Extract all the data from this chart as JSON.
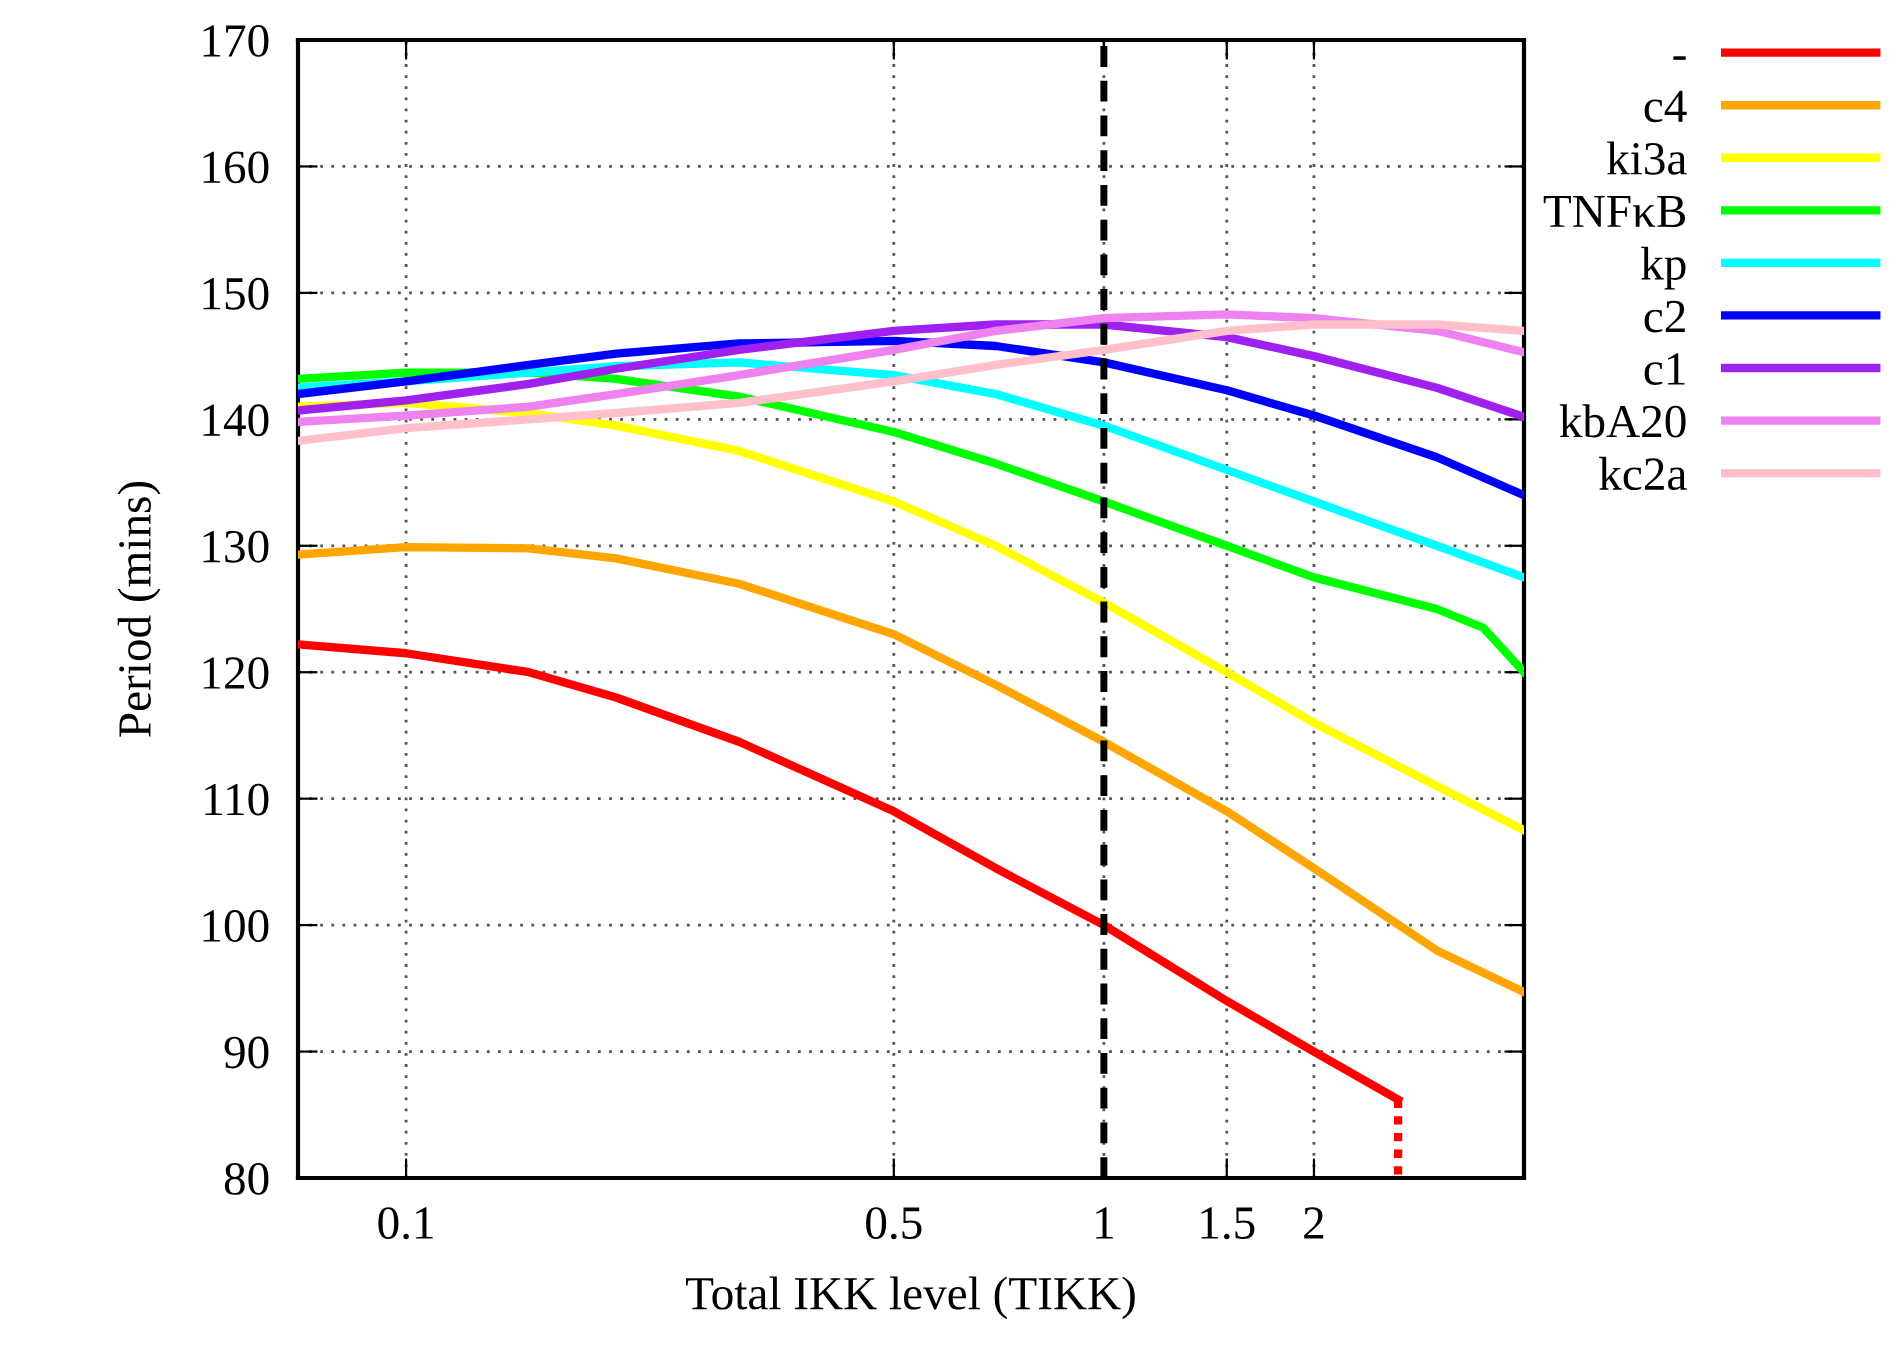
{
  "chart_data": {
    "type": "line",
    "xlabel": "Total IKK level (TIKK)",
    "ylabel": "Period (mins)",
    "log": "x",
    "xlim": [
      0.07,
      4.0
    ],
    "ylim": [
      80,
      170
    ],
    "xticks": [
      0.1,
      0.5,
      1,
      1.5,
      2
    ],
    "yticks": [
      80,
      90,
      100,
      110,
      120,
      130,
      140,
      150,
      160,
      170
    ],
    "grid": true,
    "legend": "top right",
    "line_style": "solid",
    "marker": "none",
    "x": [
      0.07,
      0.1,
      0.15,
      0.2,
      0.3,
      0.5,
      0.7,
      1,
      1.5,
      2,
      3,
      4
    ],
    "series": [
      {
        "name": "-",
        "color": "#ff0000",
        "x": [
          0.07,
          0.1,
          0.15,
          0.2,
          0.3,
          0.5,
          0.7,
          1,
          1.5,
          2,
          2.64
        ],
        "values": [
          122.2,
          121.5,
          120,
          118,
          114.5,
          109,
          104.5,
          100,
          94,
          90,
          86.2
        ]
      },
      {
        "name": "c4",
        "color": "#ffa500",
        "values": [
          129.3,
          129.9,
          129.8,
          129,
          127,
          123,
          119,
          114.5,
          109,
          104.5,
          98,
          94.7
        ]
      },
      {
        "name": "ki3a",
        "color": "#ffff00",
        "values": [
          141,
          141.3,
          140.5,
          139.5,
          137.5,
          133.5,
          130,
          125.5,
          120,
          116,
          111,
          107.5
        ]
      },
      {
        "name": "TNFκB",
        "color": "#00ff00",
        "x": [
          0.07,
          0.1,
          0.15,
          0.2,
          0.3,
          0.5,
          0.7,
          1,
          1.5,
          2,
          3,
          3.5,
          4
        ],
        "values": [
          143.2,
          143.7,
          143.7,
          143.2,
          141.8,
          139,
          136.5,
          133.5,
          130,
          127.5,
          125,
          123.5,
          120
        ]
      },
      {
        "name": "kp",
        "color": "#00ffff",
        "values": [
          142.5,
          143,
          143.7,
          144.2,
          144.5,
          143.5,
          142,
          139.5,
          136,
          133.5,
          130,
          127.5
        ]
      },
      {
        "name": "c2",
        "color": "#0000ff",
        "values": [
          142,
          143,
          144.3,
          145.2,
          146,
          146.2,
          145.8,
          144.5,
          142.3,
          140.3,
          137,
          134
        ]
      },
      {
        "name": "c1",
        "color": "#a020f0",
        "values": [
          140.7,
          141.5,
          142.8,
          144,
          145.5,
          147,
          147.5,
          147.5,
          146.5,
          145,
          142.5,
          140.2
        ]
      },
      {
        "name": "kbA20",
        "color": "#ee82ee",
        "values": [
          139.8,
          140.3,
          141,
          142,
          143.5,
          145.5,
          147,
          148,
          148.3,
          148,
          147,
          145.3
        ]
      },
      {
        "name": "kc2a",
        "color": "#ffc0cb",
        "values": [
          138.3,
          139.3,
          140,
          140.5,
          141.3,
          143,
          144.3,
          145.5,
          147,
          147.5,
          147.5,
          147
        ]
      },
      {
        "color": "#ff0000",
        "line_style": "dotted",
        "x": [
          2.64,
          2.64
        ],
        "values": [
          86.2,
          80
        ]
      }
    ],
    "ref_lines": [
      {
        "axis": "x",
        "value": 1,
        "color": "#000000",
        "line_style": "dashed"
      }
    ]
  }
}
